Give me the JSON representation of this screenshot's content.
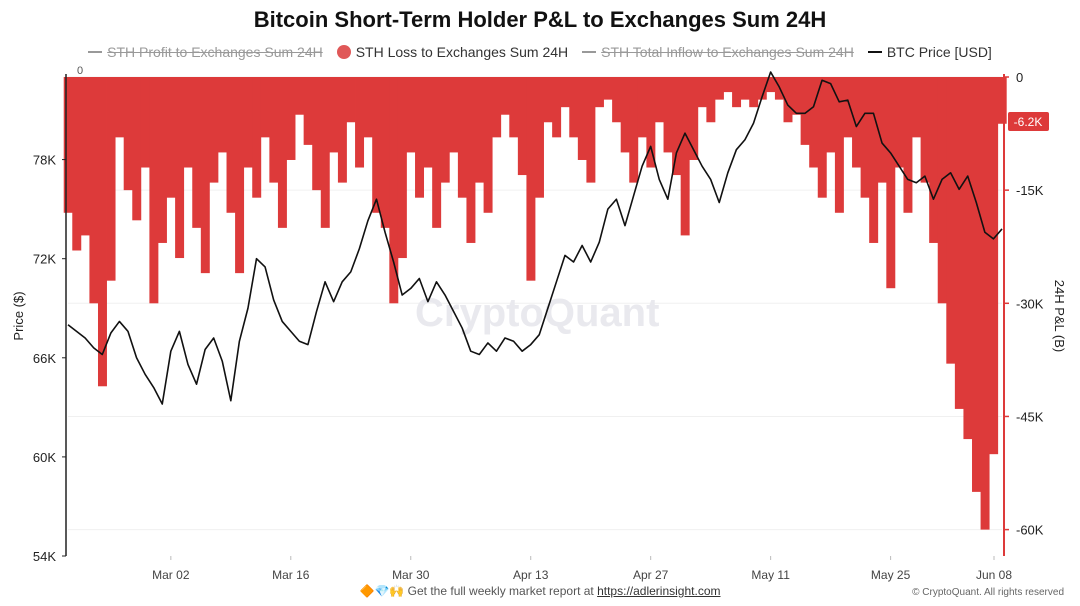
{
  "title": "Bitcoin Short-Term Holder P&L to Exchanges Sum 24H",
  "legend": [
    {
      "label": "STH Profit to Exchanges Sum 24H",
      "active": false,
      "marker": "line",
      "color": "#9e9e9e"
    },
    {
      "label": "STH Loss to Exchanges Sum 24H",
      "active": true,
      "marker": "dot",
      "color": "#e05858"
    },
    {
      "label": "STH Total Inflow to  Exchanges Sum 24H",
      "active": false,
      "marker": "line",
      "color": "#9e9e9e"
    },
    {
      "label": "BTC Price [USD]",
      "active": true,
      "marker": "line",
      "color": "#111111"
    }
  ],
  "watermark": "CryptoQuant",
  "footer": {
    "emojis": "🔶💎🙌",
    "text": "Get the full weekly market report at",
    "link": "https://adlerinsight.com"
  },
  "copyright": "© CryptoQuant. All rights reserved",
  "chart_data": {
    "type": "bar+line",
    "title": "Bitcoin Short-Term Holder P&L to Exchanges Sum 24H",
    "ylabel_left": "Price ($)",
    "ylabel_right": "24H P&L (B)",
    "top_left_label": "0",
    "x_ticks": [
      "Mar 02",
      "Mar 16",
      "Mar 30",
      "Apr 13",
      "Apr 27",
      "May 11",
      "May 25",
      "Jun 08"
    ],
    "x_range": [
      "2024-02-19",
      "2024-06-07"
    ],
    "left_axis": {
      "ticks": [
        "78K",
        "72K",
        "66K",
        "60K",
        "54K"
      ],
      "values": [
        78000,
        72000,
        66000,
        60000,
        54000
      ],
      "range": [
        54000,
        83000
      ]
    },
    "right_axis": {
      "ticks": [
        "0",
        "-15K",
        "-30K",
        "-45K",
        "-60K"
      ],
      "values": [
        0,
        -15000,
        -30000,
        -45000,
        -60000
      ],
      "range": [
        -63500,
        0
      ]
    },
    "last_value_label": "-6.2K",
    "grid": true,
    "series": [
      {
        "name": "STH Loss to Exchanges Sum 24H",
        "type": "bar",
        "axis": "right",
        "color": "#dd3a3a",
        "points": [
          [
            "2024-02-19",
            -18000
          ],
          [
            "2024-02-20",
            -23000
          ],
          [
            "2024-02-21",
            -21000
          ],
          [
            "2024-02-22",
            -30000
          ],
          [
            "2024-02-23",
            -41000
          ],
          [
            "2024-02-24",
            -27000
          ],
          [
            "2024-02-25",
            -8000
          ],
          [
            "2024-02-26",
            -15000
          ],
          [
            "2024-02-27",
            -19000
          ],
          [
            "2024-02-28",
            -12000
          ],
          [
            "2024-02-29",
            -30000
          ],
          [
            "2024-03-01",
            -22000
          ],
          [
            "2024-03-02",
            -16000
          ],
          [
            "2024-03-03",
            -24000
          ],
          [
            "2024-03-04",
            -12000
          ],
          [
            "2024-03-05",
            -20000
          ],
          [
            "2024-03-06",
            -26000
          ],
          [
            "2024-03-07",
            -14000
          ],
          [
            "2024-03-08",
            -10000
          ],
          [
            "2024-03-09",
            -18000
          ],
          [
            "2024-03-10",
            -26000
          ],
          [
            "2024-03-11",
            -12000
          ],
          [
            "2024-03-12",
            -16000
          ],
          [
            "2024-03-13",
            -8000
          ],
          [
            "2024-03-14",
            -14000
          ],
          [
            "2024-03-15",
            -20000
          ],
          [
            "2024-03-16",
            -11000
          ],
          [
            "2024-03-17",
            -5000
          ],
          [
            "2024-03-18",
            -9000
          ],
          [
            "2024-03-19",
            -15000
          ],
          [
            "2024-03-20",
            -20000
          ],
          [
            "2024-03-21",
            -10000
          ],
          [
            "2024-03-22",
            -14000
          ],
          [
            "2024-03-23",
            -6000
          ],
          [
            "2024-03-24",
            -12000
          ],
          [
            "2024-03-25",
            -8000
          ],
          [
            "2024-03-26",
            -18000
          ],
          [
            "2024-03-27",
            -20000
          ],
          [
            "2024-03-28",
            -30000
          ],
          [
            "2024-03-29",
            -24000
          ],
          [
            "2024-03-30",
            -10000
          ],
          [
            "2024-03-31",
            -16000
          ],
          [
            "2024-04-01",
            -12000
          ],
          [
            "2024-04-02",
            -20000
          ],
          [
            "2024-04-03",
            -14000
          ],
          [
            "2024-04-04",
            -10000
          ],
          [
            "2024-04-05",
            -16000
          ],
          [
            "2024-04-06",
            -22000
          ],
          [
            "2024-04-07",
            -14000
          ],
          [
            "2024-04-08",
            -18000
          ],
          [
            "2024-04-09",
            -8000
          ],
          [
            "2024-04-10",
            -5000
          ],
          [
            "2024-04-11",
            -8000
          ],
          [
            "2024-04-12",
            -13000
          ],
          [
            "2024-04-13",
            -27000
          ],
          [
            "2024-04-14",
            -16000
          ],
          [
            "2024-04-15",
            -6000
          ],
          [
            "2024-04-16",
            -8000
          ],
          [
            "2024-04-17",
            -4000
          ],
          [
            "2024-04-18",
            -8000
          ],
          [
            "2024-04-19",
            -11000
          ],
          [
            "2024-04-20",
            -14000
          ],
          [
            "2024-04-21",
            -4000
          ],
          [
            "2024-04-22",
            -3000
          ],
          [
            "2024-04-23",
            -6000
          ],
          [
            "2024-04-24",
            -10000
          ],
          [
            "2024-04-25",
            -14000
          ],
          [
            "2024-04-26",
            -8000
          ],
          [
            "2024-04-27",
            -12000
          ],
          [
            "2024-04-28",
            -6000
          ],
          [
            "2024-04-29",
            -10000
          ],
          [
            "2024-04-30",
            -13000
          ],
          [
            "2024-05-01",
            -21000
          ],
          [
            "2024-05-02",
            -11000
          ],
          [
            "2024-05-03",
            -4000
          ],
          [
            "2024-05-04",
            -6000
          ],
          [
            "2024-05-05",
            -3000
          ],
          [
            "2024-05-06",
            -2000
          ],
          [
            "2024-05-07",
            -4000
          ],
          [
            "2024-05-08",
            -3000
          ],
          [
            "2024-05-09",
            -4000
          ],
          [
            "2024-05-10",
            -3000
          ],
          [
            "2024-05-11",
            -2000
          ],
          [
            "2024-05-12",
            -3000
          ],
          [
            "2024-05-13",
            -6000
          ],
          [
            "2024-05-14",
            -5000
          ],
          [
            "2024-05-15",
            -9000
          ],
          [
            "2024-05-16",
            -12000
          ],
          [
            "2024-05-17",
            -16000
          ],
          [
            "2024-05-18",
            -10000
          ],
          [
            "2024-05-19",
            -18000
          ],
          [
            "2024-05-20",
            -8000
          ],
          [
            "2024-05-21",
            -12000
          ],
          [
            "2024-05-22",
            -16000
          ],
          [
            "2024-05-23",
            -22000
          ],
          [
            "2024-05-24",
            -14000
          ],
          [
            "2024-05-25",
            -28000
          ],
          [
            "2024-05-26",
            -12000
          ],
          [
            "2024-05-27",
            -18000
          ],
          [
            "2024-05-28",
            -8000
          ],
          [
            "2024-05-29",
            -14000
          ],
          [
            "2024-05-30",
            -22000
          ],
          [
            "2024-05-31",
            -30000
          ],
          [
            "2024-06-01",
            -38000
          ],
          [
            "2024-06-02",
            -44000
          ],
          [
            "2024-06-03",
            -48000
          ],
          [
            "2024-06-04",
            -55000
          ],
          [
            "2024-06-05",
            -60000
          ],
          [
            "2024-06-06",
            -50000
          ],
          [
            "2024-06-07",
            -6200
          ]
        ]
      },
      {
        "name": "BTC Price [USD]",
        "type": "line",
        "axis": "left",
        "color": "#111111",
        "points": [
          [
            "2024-02-19",
            68000
          ],
          [
            "2024-02-20",
            67600
          ],
          [
            "2024-02-21",
            67200
          ],
          [
            "2024-02-22",
            66600
          ],
          [
            "2024-02-23",
            66200
          ],
          [
            "2024-02-24",
            67500
          ],
          [
            "2024-02-25",
            68200
          ],
          [
            "2024-02-26",
            67600
          ],
          [
            "2024-02-27",
            66000
          ],
          [
            "2024-02-28",
            65000
          ],
          [
            "2024-02-29",
            64200
          ],
          [
            "2024-03-01",
            63200
          ],
          [
            "2024-03-02",
            66400
          ],
          [
            "2024-03-03",
            67600
          ],
          [
            "2024-03-04",
            65600
          ],
          [
            "2024-03-05",
            64400
          ],
          [
            "2024-03-06",
            66500
          ],
          [
            "2024-03-07",
            67200
          ],
          [
            "2024-03-08",
            65800
          ],
          [
            "2024-03-09",
            63400
          ],
          [
            "2024-03-10",
            67000
          ],
          [
            "2024-03-11",
            69000
          ],
          [
            "2024-03-12",
            72000
          ],
          [
            "2024-03-13",
            71500
          ],
          [
            "2024-03-14",
            69500
          ],
          [
            "2024-03-15",
            68200
          ],
          [
            "2024-03-16",
            67600
          ],
          [
            "2024-03-17",
            67000
          ],
          [
            "2024-03-18",
            66800
          ],
          [
            "2024-03-19",
            68800
          ],
          [
            "2024-03-20",
            70600
          ],
          [
            "2024-03-21",
            69400
          ],
          [
            "2024-03-22",
            70600
          ],
          [
            "2024-03-23",
            71200
          ],
          [
            "2024-03-24",
            72600
          ],
          [
            "2024-03-25",
            74300
          ],
          [
            "2024-03-26",
            75600
          ],
          [
            "2024-03-27",
            73600
          ],
          [
            "2024-03-28",
            71800
          ],
          [
            "2024-03-29",
            69800
          ],
          [
            "2024-03-30",
            70200
          ],
          [
            "2024-03-31",
            70800
          ],
          [
            "2024-04-01",
            69400
          ],
          [
            "2024-04-02",
            70600
          ],
          [
            "2024-04-03",
            69800
          ],
          [
            "2024-04-04",
            68800
          ],
          [
            "2024-04-05",
            67800
          ],
          [
            "2024-04-06",
            66400
          ],
          [
            "2024-04-07",
            66200
          ],
          [
            "2024-04-08",
            66900
          ],
          [
            "2024-04-09",
            66400
          ],
          [
            "2024-04-10",
            67200
          ],
          [
            "2024-04-11",
            67000
          ],
          [
            "2024-04-12",
            66400
          ],
          [
            "2024-04-13",
            66800
          ],
          [
            "2024-04-14",
            67400
          ],
          [
            "2024-04-15",
            69000
          ],
          [
            "2024-04-16",
            70600
          ],
          [
            "2024-04-17",
            72200
          ],
          [
            "2024-04-18",
            71800
          ],
          [
            "2024-04-19",
            72800
          ],
          [
            "2024-04-20",
            71800
          ],
          [
            "2024-04-21",
            73000
          ],
          [
            "2024-04-22",
            75000
          ],
          [
            "2024-04-23",
            75600
          ],
          [
            "2024-04-24",
            74000
          ],
          [
            "2024-04-25",
            75800
          ],
          [
            "2024-04-26",
            77600
          ],
          [
            "2024-04-27",
            78800
          ],
          [
            "2024-04-28",
            76800
          ],
          [
            "2024-04-29",
            75600
          ],
          [
            "2024-04-30",
            78400
          ],
          [
            "2024-05-01",
            79600
          ],
          [
            "2024-05-02",
            78600
          ],
          [
            "2024-05-03",
            77600
          ],
          [
            "2024-05-04",
            76800
          ],
          [
            "2024-05-05",
            75400
          ],
          [
            "2024-05-06",
            77200
          ],
          [
            "2024-05-07",
            78600
          ],
          [
            "2024-05-08",
            79200
          ],
          [
            "2024-05-09",
            80200
          ],
          [
            "2024-05-10",
            81800
          ],
          [
            "2024-05-11",
            83300
          ],
          [
            "2024-05-12",
            82400
          ],
          [
            "2024-05-13",
            81300
          ],
          [
            "2024-05-14",
            80800
          ],
          [
            "2024-05-15",
            80800
          ],
          [
            "2024-05-16",
            81200
          ],
          [
            "2024-05-17",
            82800
          ],
          [
            "2024-05-18",
            82600
          ],
          [
            "2024-05-19",
            81500
          ],
          [
            "2024-05-20",
            81600
          ],
          [
            "2024-05-21",
            80000
          ],
          [
            "2024-05-22",
            80800
          ],
          [
            "2024-05-23",
            80800
          ],
          [
            "2024-05-24",
            79000
          ],
          [
            "2024-05-25",
            78400
          ],
          [
            "2024-05-26",
            77600
          ],
          [
            "2024-05-27",
            76800
          ],
          [
            "2024-05-28",
            76600
          ],
          [
            "2024-05-29",
            77000
          ],
          [
            "2024-05-30",
            75600
          ],
          [
            "2024-05-31",
            76800
          ],
          [
            "2024-06-01",
            77200
          ],
          [
            "2024-06-02",
            76200
          ],
          [
            "2024-06-03",
            77000
          ],
          [
            "2024-06-04",
            75400
          ],
          [
            "2024-06-05",
            73600
          ],
          [
            "2024-06-06",
            73200
          ],
          [
            "2024-06-07",
            73800
          ]
        ]
      }
    ]
  }
}
